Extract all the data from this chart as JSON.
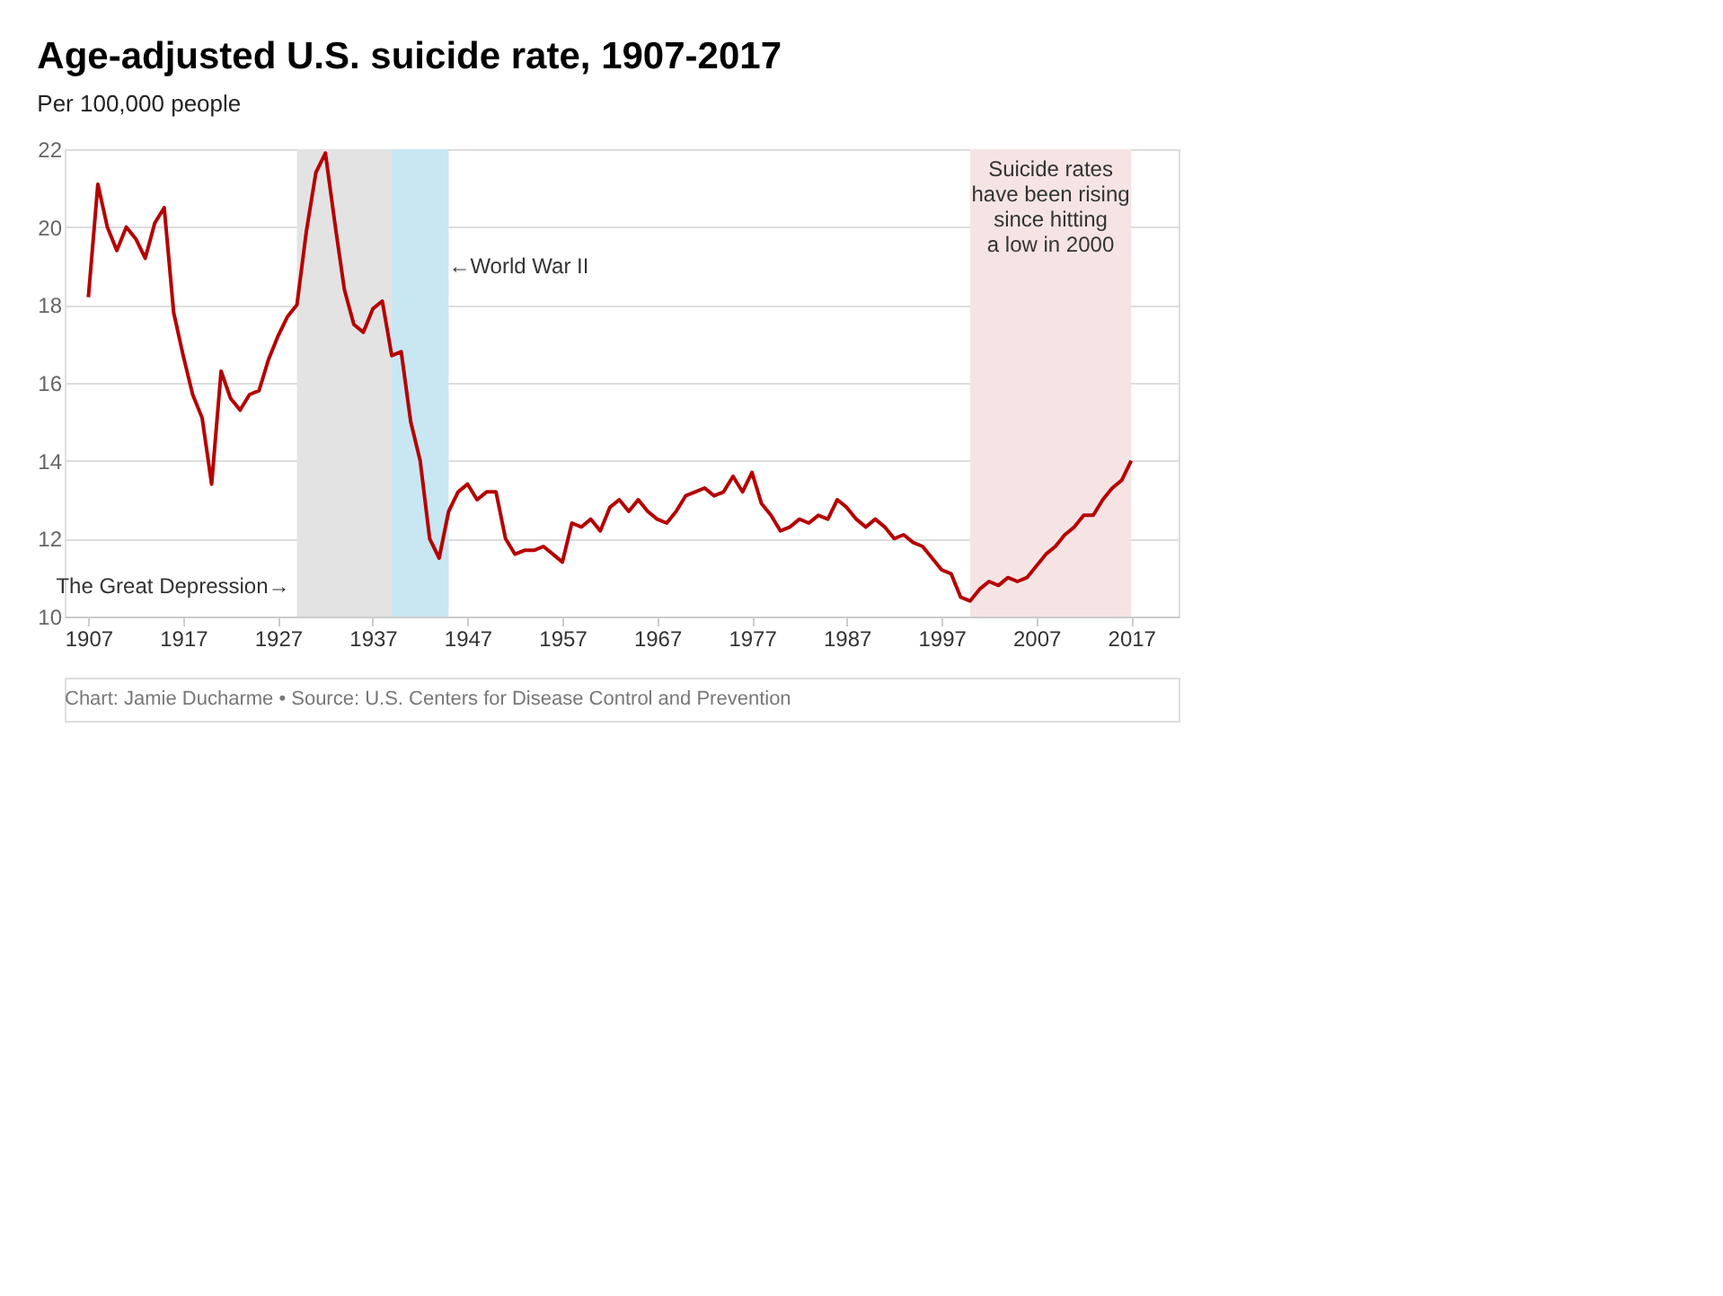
{
  "chart_data": {
    "type": "line",
    "title": "Age-adjusted U.S. suicide rate, 1907-2017",
    "subtitle": "Per 100,000 people",
    "x": [
      1907,
      1908,
      1909,
      1910,
      1911,
      1912,
      1913,
      1914,
      1915,
      1916,
      1917,
      1918,
      1919,
      1920,
      1921,
      1922,
      1923,
      1924,
      1925,
      1926,
      1927,
      1928,
      1929,
      1930,
      1931,
      1932,
      1933,
      1934,
      1935,
      1936,
      1937,
      1938,
      1939,
      1940,
      1941,
      1942,
      1943,
      1944,
      1945,
      1946,
      1947,
      1948,
      1949,
      1950,
      1951,
      1952,
      1953,
      1954,
      1955,
      1956,
      1957,
      1958,
      1959,
      1960,
      1961,
      1962,
      1963,
      1964,
      1965,
      1966,
      1967,
      1968,
      1969,
      1970,
      1971,
      1972,
      1973,
      1974,
      1975,
      1976,
      1977,
      1978,
      1979,
      1980,
      1981,
      1982,
      1983,
      1984,
      1985,
      1986,
      1987,
      1988,
      1989,
      1990,
      1991,
      1992,
      1993,
      1994,
      1995,
      1996,
      1997,
      1998,
      1999,
      2000,
      2001,
      2002,
      2003,
      2004,
      2005,
      2006,
      2007,
      2008,
      2009,
      2010,
      2011,
      2012,
      2013,
      2014,
      2015,
      2016,
      2017
    ],
    "series": [
      {
        "color": "#b50000",
        "values": [
          18.2,
          21.1,
          20.0,
          19.4,
          20.0,
          19.7,
          19.2,
          20.1,
          20.5,
          17.8,
          16.7,
          15.7,
          15.1,
          13.4,
          16.3,
          15.6,
          15.3,
          15.7,
          15.8,
          16.6,
          17.2,
          17.7,
          18.0,
          19.9,
          21.4,
          21.9,
          20.1,
          18.4,
          17.5,
          17.3,
          17.9,
          18.1,
          16.7,
          16.8,
          15.0,
          14.0,
          12.0,
          11.5,
          12.7,
          13.2,
          13.4,
          13.0,
          13.2,
          13.2,
          12.0,
          11.6,
          11.7,
          11.7,
          11.8,
          11.6,
          11.4,
          12.4,
          12.3,
          12.5,
          12.2,
          12.8,
          13.0,
          12.7,
          13.0,
          12.7,
          12.5,
          12.4,
          12.7,
          13.1,
          13.2,
          13.3,
          13.1,
          13.2,
          13.6,
          13.2,
          13.7,
          12.9,
          12.6,
          12.2,
          12.3,
          12.5,
          12.4,
          12.6,
          12.5,
          13.0,
          12.8,
          12.5,
          12.3,
          12.5,
          12.3,
          12.0,
          12.1,
          11.9,
          11.8,
          11.5,
          11.2,
          11.1,
          10.5,
          10.4,
          10.7,
          10.9,
          10.8,
          11.0,
          10.9,
          11.0,
          11.3,
          11.6,
          11.8,
          12.1,
          12.3,
          12.6,
          12.6,
          13.0,
          13.3,
          13.5,
          14.0
        ]
      }
    ],
    "xlim": [
      1904.5,
      2022
    ],
    "xticks": [
      1907,
      1917,
      1927,
      1937,
      1947,
      1957,
      1967,
      1977,
      1987,
      1997,
      2007,
      2017
    ],
    "ylim": [
      10,
      22
    ],
    "yticks": [
      10,
      12,
      14,
      16,
      18,
      20,
      22
    ],
    "grid": "y",
    "bands": [
      {
        "axis": "x",
        "from": 1929,
        "to": 1939,
        "label": "The Great Depression→",
        "color": "#e3e3e3"
      },
      {
        "axis": "x",
        "from": 1939,
        "to": 1945,
        "label": "←World War II",
        "color": "#c9e6f3"
      },
      {
        "axis": "x",
        "from": 2000,
        "to": 2017,
        "label": "Suicide rates\nhave been rising\nsince hitting\na low in 2000",
        "color": "#f6e4e4"
      }
    ],
    "annotations": [
      "Chart: Jamie Ducharme • Source: U.S. Centers for Disease Control and Prevention"
    ]
  }
}
